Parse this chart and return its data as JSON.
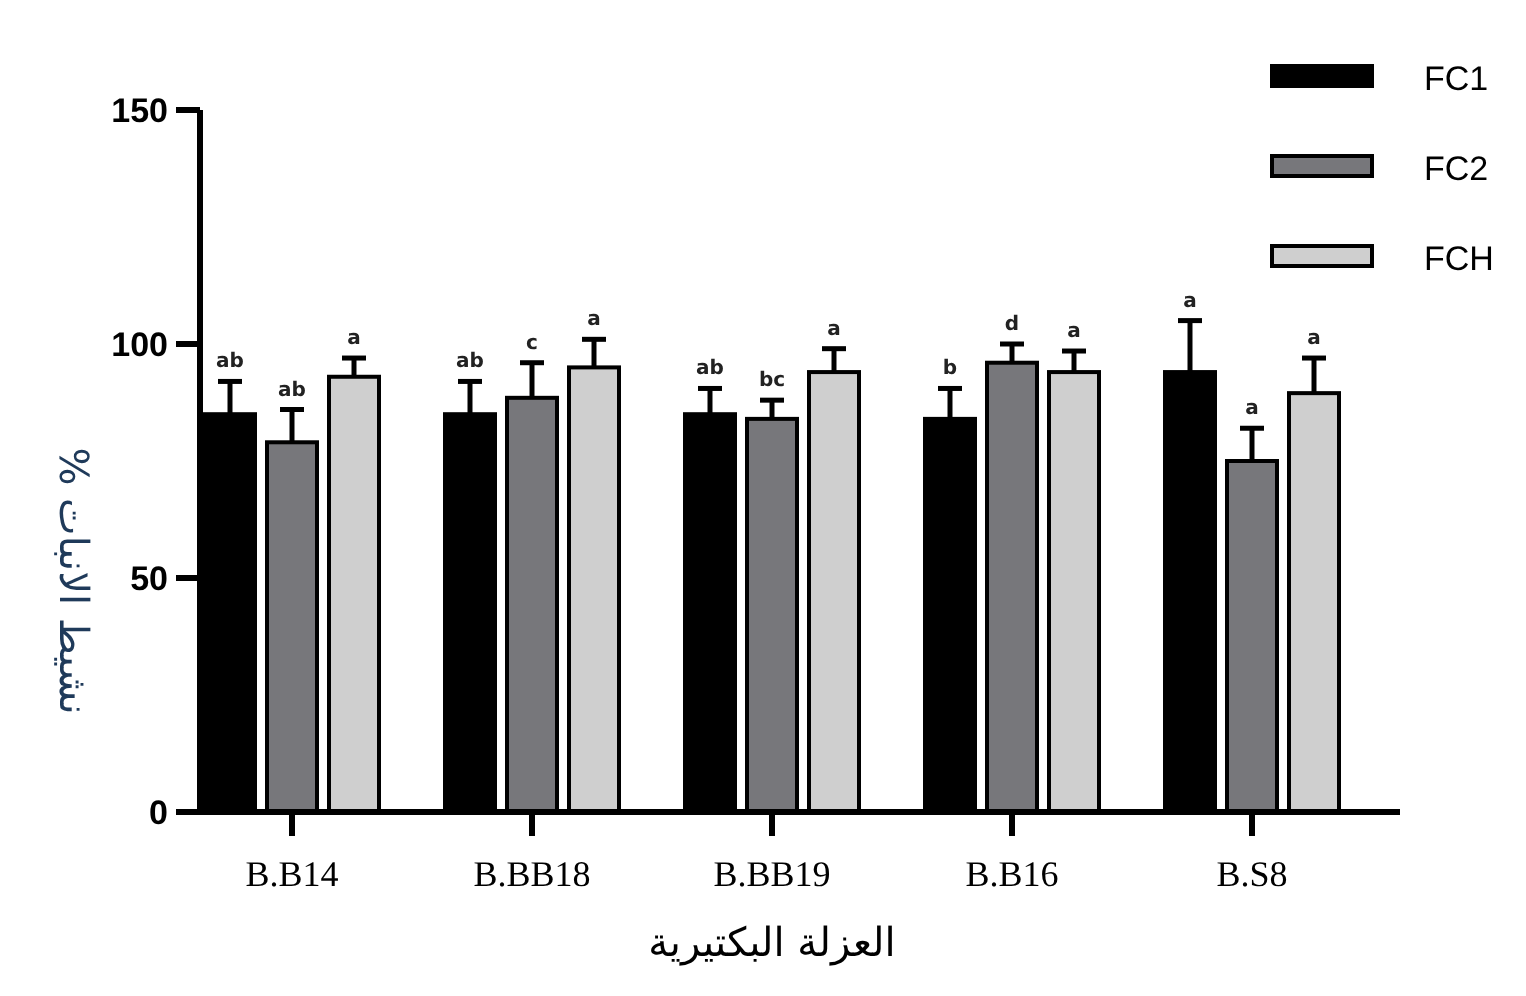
{
  "chart_data": {
    "type": "bar",
    "xlabel": "العزلة البكتيرية",
    "ylabel": "نشيط الانبات %",
    "categories": [
      "B.B14",
      "B.BB18",
      "B.BB19",
      "B.B16",
      "B.S8"
    ],
    "ylim": [
      0,
      150
    ],
    "yticks": [
      0,
      50,
      100,
      150
    ],
    "grid": false,
    "legend": "top right",
    "series": [
      {
        "name": "FC1",
        "color": "#000000",
        "values": [
          85,
          85,
          85,
          84,
          94
        ],
        "errors": [
          7,
          7,
          5.5,
          6.5,
          11
        ],
        "value_labels": [
          "ab",
          "ab",
          "ab",
          "b",
          "a"
        ]
      },
      {
        "name": "FC2",
        "color": "#77777b",
        "values": [
          79,
          88.5,
          84,
          96,
          75
        ],
        "errors": [
          7,
          7.5,
          4,
          4,
          7
        ],
        "value_labels": [
          "ab",
          "c",
          "bc",
          "d",
          "a"
        ]
      },
      {
        "name": "FCH",
        "color": "#cfcfcf",
        "values": [
          93,
          95,
          94,
          94,
          89.5
        ],
        "errors": [
          4,
          6,
          5,
          4.5,
          7.5
        ],
        "value_labels": [
          "a",
          "a",
          "a",
          "a",
          "a"
        ]
      }
    ]
  }
}
